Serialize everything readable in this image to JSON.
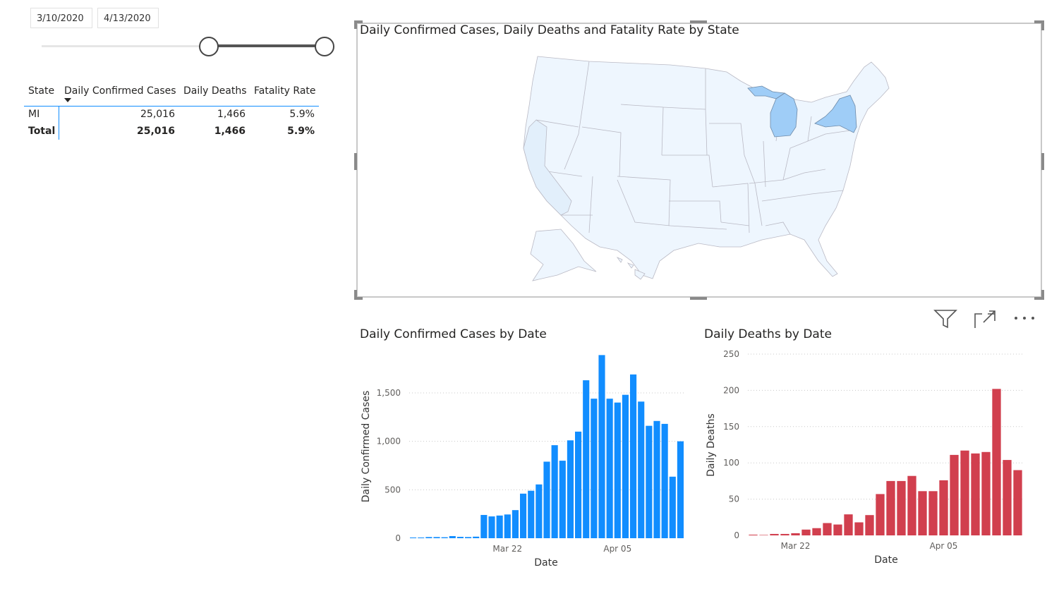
{
  "slicer": {
    "start_date": "3/10/2020",
    "end_date": "4/13/2020"
  },
  "table": {
    "headers": [
      "State",
      "Daily Confirmed Cases",
      "Daily Deaths",
      "Fatality Rate"
    ],
    "rows": [
      {
        "state": "MI",
        "cases": "25,016",
        "deaths": "1,466",
        "rate": "5.9%"
      }
    ],
    "total": {
      "state": "Total",
      "cases": "25,016",
      "deaths": "1,466",
      "rate": "5.9%"
    }
  },
  "map": {
    "title": "Daily Confirmed Cases, Daily Deaths and Fatality Rate by State",
    "highlight_color": "#9fcdf7",
    "base_color": "#eef6fe"
  },
  "visual_header": {
    "icons": [
      "filter-icon",
      "focus-mode-icon",
      "more-options-icon"
    ]
  },
  "chart_data": [
    {
      "type": "bar",
      "title": "Daily Confirmed Cases by Date",
      "xlabel": "Date",
      "ylabel": "Daily Confirmed Cases",
      "ylim": [
        0,
        1900
      ],
      "yticks": [
        0,
        500,
        1000,
        1500
      ],
      "ytick_labels": [
        "0",
        "500",
        "1,000",
        "1,500"
      ],
      "x_tick_labels": [
        {
          "label": "Mar 22",
          "index": 12
        },
        {
          "label": "Apr 05",
          "index": 26
        }
      ],
      "color": "#118dff",
      "values": [
        2,
        1,
        12,
        12,
        10,
        22,
        14,
        12,
        16,
        240,
        225,
        234,
        245,
        290,
        460,
        490,
        555,
        790,
        960,
        800,
        1010,
        1100,
        1630,
        1440,
        1890,
        1440,
        1400,
        1480,
        1690,
        1410,
        1160,
        1210,
        1180,
        635,
        1000
      ]
    },
    {
      "type": "bar",
      "title": "Daily Deaths by Date",
      "xlabel": "Date",
      "ylabel": "Daily Deaths",
      "ylim": [
        0,
        250
      ],
      "yticks": [
        0,
        50,
        100,
        150,
        200,
        250
      ],
      "ytick_labels": [
        "0",
        "50",
        "100",
        "150",
        "200",
        "250"
      ],
      "x_tick_labels": [
        {
          "label": "Mar 22",
          "index": 4
        },
        {
          "label": "Apr 05",
          "index": 18
        }
      ],
      "color": "#d13f4e",
      "values": [
        1,
        0,
        2,
        2,
        3,
        8,
        10,
        17,
        15,
        29,
        18,
        28,
        57,
        75,
        75,
        82,
        61,
        61,
        76,
        111,
        117,
        113,
        115,
        202,
        104,
        90
      ]
    }
  ]
}
